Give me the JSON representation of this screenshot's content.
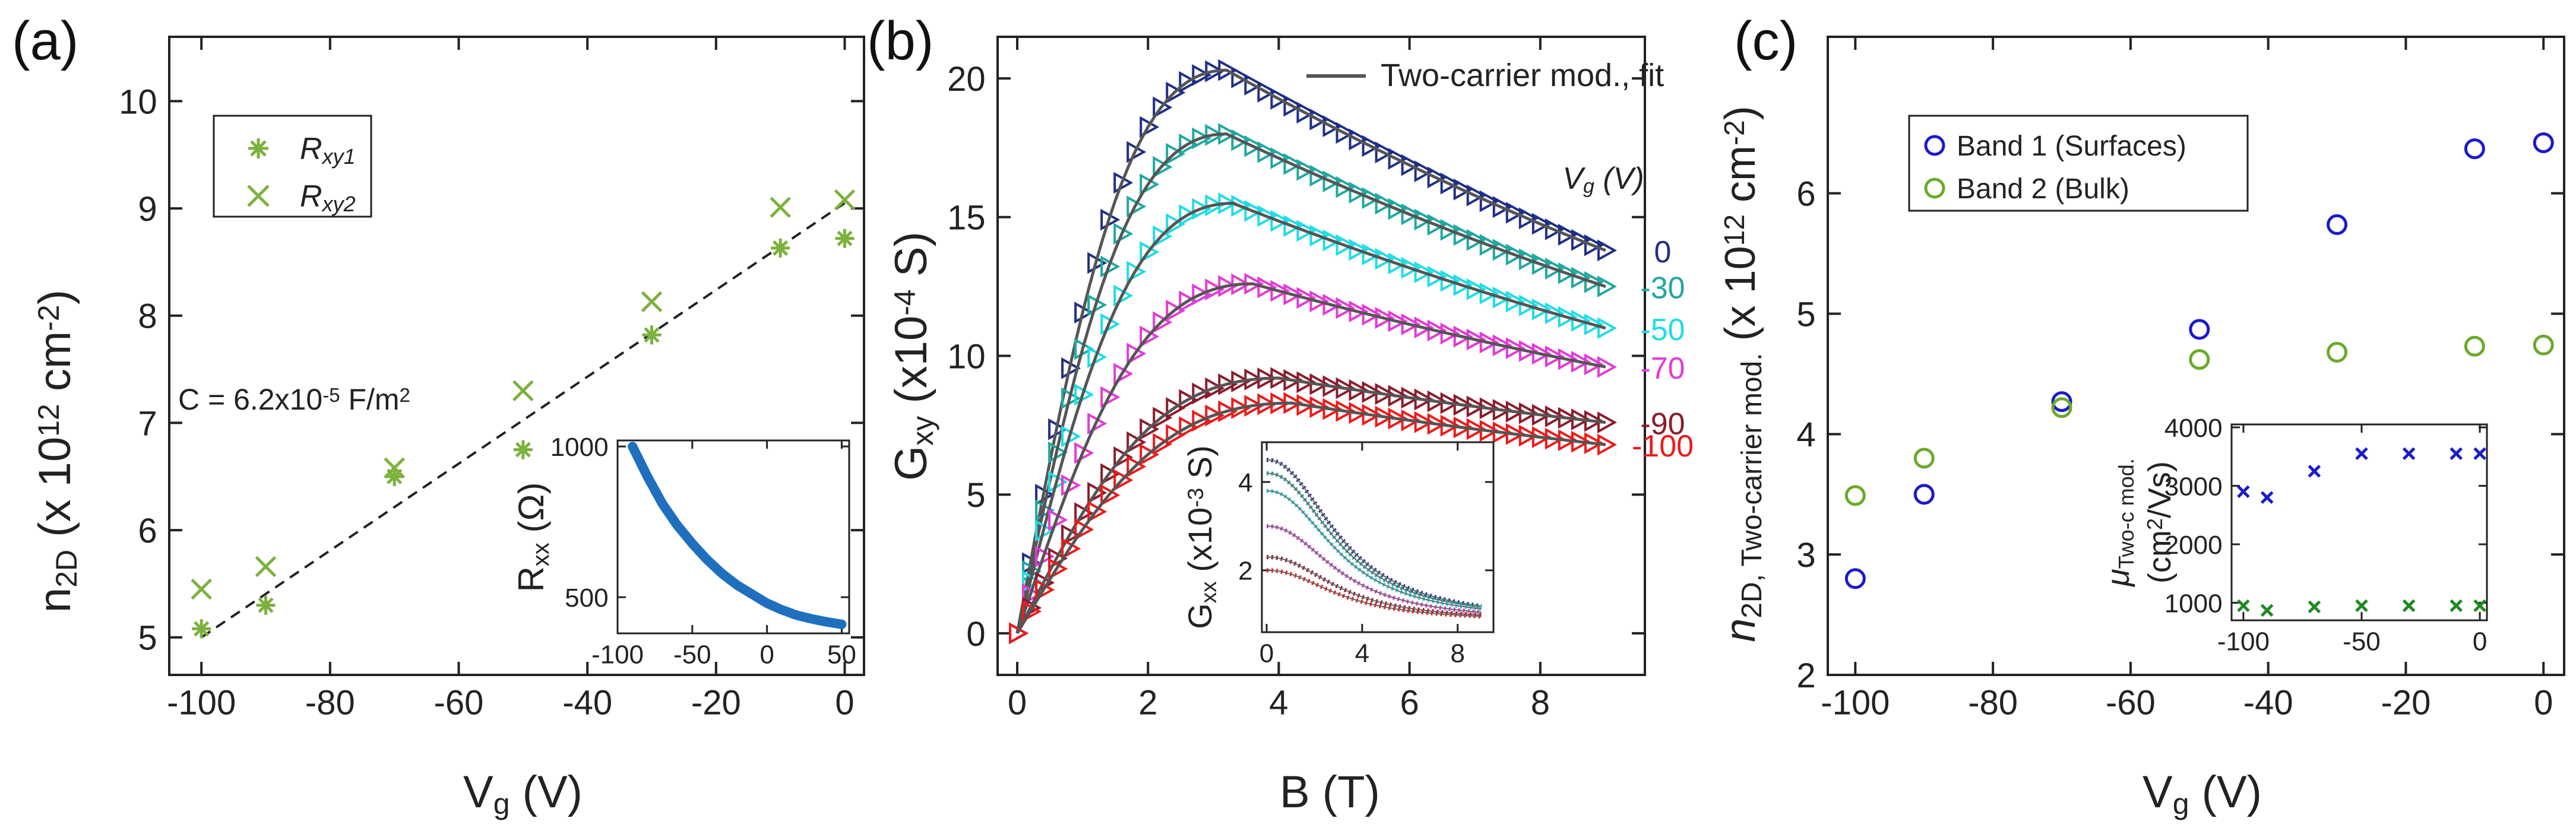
{
  "figure": {
    "panels": [
      "(a)",
      "(b)",
      "(c)"
    ]
  },
  "chart_data": [
    {
      "type": "scatter",
      "panel": "(a)",
      "xlabel": "V_g (V)",
      "ylabel": "n_2D (x 10^12 cm^-2)",
      "xlim": [
        -105,
        3
      ],
      "ylim": [
        4.65,
        10.6
      ],
      "xticks": [
        -100,
        -80,
        -60,
        -40,
        -20,
        0
      ],
      "yticks": [
        5,
        6,
        7,
        8,
        9,
        10
      ],
      "series": [
        {
          "name": "R_xy1",
          "color": "#7cb13e",
          "marker": "asterisk",
          "x": [
            -100,
            -90,
            -70,
            -50,
            -30,
            -10,
            0
          ],
          "y": [
            5.08,
            5.3,
            6.5,
            6.75,
            7.82,
            8.63,
            8.72
          ]
        },
        {
          "name": "R_xy2",
          "color": "#7cb13e",
          "marker": "x",
          "x": [
            -100,
            -90,
            -70,
            -50,
            -30,
            -10,
            0
          ],
          "y": [
            5.45,
            5.66,
            6.58,
            7.3,
            8.13,
            9.01,
            9.08
          ]
        }
      ],
      "fit": {
        "style": "dashed",
        "color": "#222222",
        "x": [
          -100,
          0
        ],
        "y": [
          5.0,
          9.05
        ]
      },
      "annotation": "C = 6.2x10^-5 F/m^2",
      "inset": {
        "type": "line",
        "xlabel": "",
        "ylabel": "R_xx (Ω)",
        "xlim": [
          -100,
          55
        ],
        "ylim": [
          380,
          1020
        ],
        "xticks": [
          -100,
          -50,
          0,
          50
        ],
        "yticks": [
          500,
          1000
        ],
        "color": "#1f6fbf",
        "x": [
          -90,
          -80,
          -70,
          -60,
          -50,
          -40,
          -30,
          -20,
          -10,
          0,
          10,
          20,
          30,
          40,
          50
        ],
        "y": [
          1000,
          900,
          810,
          738,
          678,
          624,
          578,
          540,
          510,
          480,
          458,
          440,
          428,
          418,
          410
        ]
      }
    },
    {
      "type": "line",
      "panel": "(b)",
      "xlabel": "B (T)",
      "ylabel": "G_xy (x10^-4 S)",
      "xlim": [
        -0.3,
        9.6
      ],
      "ylim": [
        -1.5,
        21.5
      ],
      "xticks": [
        0,
        2,
        4,
        6,
        8
      ],
      "yticks": [
        0,
        5,
        10,
        15,
        20
      ],
      "legend": "Two-carrier mod., fit",
      "gate_label": "V_g (V)",
      "series": [
        {
          "name": "0",
          "color": "#1f2f88",
          "peak": 20.3,
          "peakB": 3.2,
          "end": 13.8
        },
        {
          "name": "-30",
          "color": "#20a8a0",
          "peak": 18.0,
          "peakB": 3.2,
          "end": 12.5
        },
        {
          "name": "-50",
          "color": "#20dce6",
          "peak": 15.5,
          "peakB": 3.3,
          "end": 11.0
        },
        {
          "name": "-70",
          "color": "#e23bd8",
          "peak": 12.6,
          "peakB": 3.6,
          "end": 9.6
        },
        {
          "name": "-90",
          "color": "#8a1c2c",
          "peak": 9.2,
          "peakB": 4.0,
          "end": 7.6
        },
        {
          "name": "-100",
          "color": "#ee1a1a",
          "peak": 8.3,
          "peakB": 4.2,
          "end": 6.8
        }
      ],
      "inset": {
        "type": "line",
        "xlabel": "",
        "ylabel": "G_xx (x10^-3 S)",
        "xlim": [
          -0.2,
          9.5
        ],
        "ylim": [
          0.6,
          4.9
        ],
        "xticks": [
          0,
          4,
          8
        ],
        "yticks": [
          2,
          4
        ],
        "start_values": [
          4.5,
          4.2,
          3.8,
          3.0,
          2.3,
          2.0
        ]
      }
    },
    {
      "type": "scatter",
      "panel": "(c)",
      "xlabel": "V_g (V)",
      "ylabel": "n_2D, Two-carrier mod. (x 10^12 cm^-2)",
      "xlim": [
        -104,
        3
      ],
      "ylim": [
        2,
        7.3
      ],
      "xticks": [
        -100,
        -80,
        -60,
        -40,
        -20,
        0
      ],
      "yticks": [
        2,
        3,
        4,
        5,
        6
      ],
      "series": [
        {
          "name": "Band 1 (Surfaces)",
          "color": "#1a1acc",
          "marker": "circle",
          "x": [
            -100,
            -90,
            -70,
            -50,
            -30,
            -10,
            0
          ],
          "y": [
            2.8,
            3.5,
            4.27,
            4.87,
            5.74,
            6.37,
            6.42
          ]
        },
        {
          "name": "Band 2 (Bulk)",
          "color": "#6aaa2a",
          "marker": "circle",
          "x": [
            -100,
            -90,
            -70,
            -50,
            -30,
            -10,
            0
          ],
          "y": [
            3.49,
            3.8,
            4.22,
            4.62,
            4.68,
            4.73,
            4.74
          ]
        }
      ],
      "inset": {
        "type": "scatter",
        "xlabel": "",
        "ylabel": "μ_Two-c mod. (cm^2/Vs)",
        "xlim": [
          -105,
          3
        ],
        "ylim": [
          700,
          4050
        ],
        "xticks": [
          -100,
          -50,
          0
        ],
        "yticks": [
          1000,
          2000,
          3000,
          4000
        ],
        "series": [
          {
            "name": "Band 1",
            "color": "#1a1acc",
            "marker": "x",
            "x": [
              -100,
              -90,
              -70,
              -50,
              -30,
              -10,
              0
            ],
            "y": [
              2900,
              2800,
              3250,
              3550,
              3550,
              3550,
              3550
            ]
          },
          {
            "name": "Band 2",
            "color": "#1f8a1f",
            "marker": "x",
            "x": [
              -100,
              -90,
              -70,
              -50,
              -30,
              -10,
              0
            ],
            "y": [
              950,
              870,
              930,
              950,
              950,
              950,
              950
            ]
          }
        ]
      }
    }
  ]
}
